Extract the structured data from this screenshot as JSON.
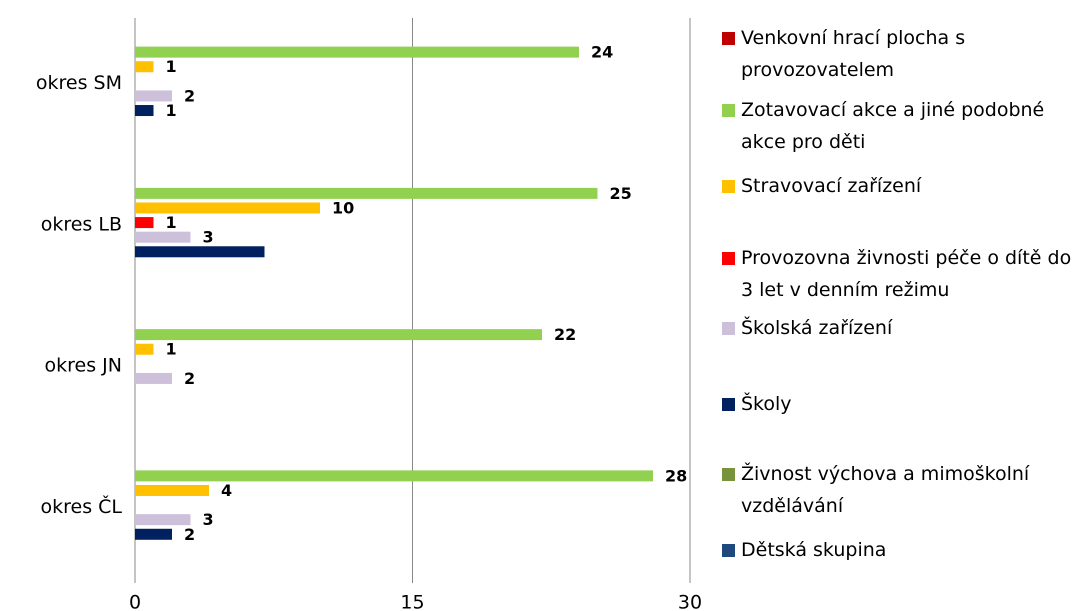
{
  "chart_data": {
    "type": "hbar",
    "categories": [
      "okres SM",
      "okres LB",
      "okres JN",
      "okres ČL"
    ],
    "series": [
      {
        "name": "Venkovní hrací plocha s provozovatelem",
        "color": "#c00000",
        "values": [
          null,
          null,
          null,
          null
        ]
      },
      {
        "name": "Zotavovací akce a jiné podobné akce pro děti",
        "color": "#92d050",
        "values": [
          24,
          25,
          22,
          28
        ]
      },
      {
        "name": "Stravovací zařízení",
        "color": "#ffc000",
        "values": [
          1,
          10,
          1,
          4
        ]
      },
      {
        "name": "Provozovna živnosti péče o dítě do 3 let v denním režimu",
        "color": "#ff0000",
        "values": [
          null,
          1,
          null,
          null
        ]
      },
      {
        "name": "Školská zařízení",
        "color": "#ccc0da",
        "values": [
          2,
          3,
          2,
          3
        ]
      },
      {
        "name": "Školy",
        "color": "#002060",
        "values": [
          1,
          7,
          null,
          2
        ],
        "value_labels": [
          "1",
          null,
          null,
          "2"
        ]
      },
      {
        "name": "Živnost výchova a mimoškolní vzdělávání",
        "color": "#77933c",
        "values": [
          null,
          null,
          null,
          null
        ]
      },
      {
        "name": "Dětská skupina",
        "color": "#1f497d",
        "values": [
          null,
          null,
          null,
          null
        ]
      }
    ],
    "xlim": [
      0,
      30
    ],
    "xticks": [
      0,
      15,
      30
    ],
    "grid": true,
    "legend": "right"
  }
}
